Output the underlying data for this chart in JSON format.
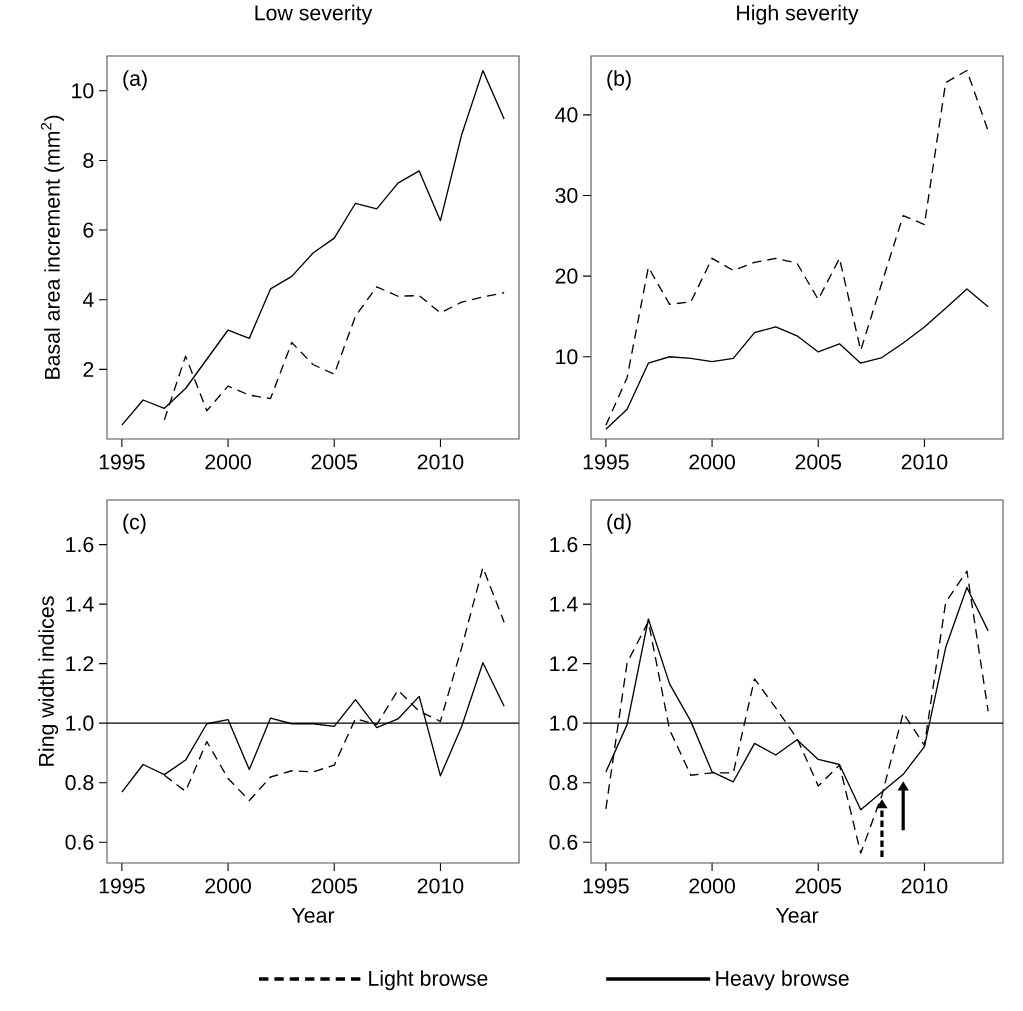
{
  "chart_data": [
    {
      "type": "line",
      "title": "Low severity",
      "ylabel": "Basal area increment (mm$^{2}$)",
      "annotations": [
        "(a)"
      ],
      "x": [
        1995,
        1996,
        1997,
        1998,
        1999,
        2000,
        2001,
        2002,
        2003,
        2004,
        2005,
        2006,
        2007,
        2008,
        2009,
        2010,
        2011,
        2012,
        2013
      ],
      "series": [
        {
          "color": "#000000",
          "line_style": "dashed",
          "values": [
            null,
            null,
            0.55,
            2.38,
            0.81,
            1.52,
            1.26,
            1.16,
            2.77,
            2.14,
            1.86,
            3.53,
            4.37,
            4.1,
            4.12,
            3.62,
            3.93,
            4.08,
            4.2
          ]
        },
        {
          "color": "#000000",
          "line_style": "solid",
          "values": [
            0.4,
            1.12,
            0.88,
            1.45,
            2.29,
            3.13,
            2.89,
            4.31,
            4.67,
            5.34,
            5.77,
            6.77,
            6.61,
            7.35,
            7.7,
            6.27,
            8.74,
            10.58,
            9.19
          ]
        }
      ],
      "xlim": [
        1994.3,
        2013.7
      ],
      "ylim": [
        0,
        11
      ],
      "xticks": [
        1995,
        2000,
        2005,
        2010
      ],
      "yticks": [
        2,
        4,
        6,
        8,
        10
      ],
      "grid": false,
      "legend": false
    },
    {
      "type": "line",
      "title": "High severity",
      "annotations": [
        "(b)"
      ],
      "x": [
        1995,
        1996,
        1997,
        1998,
        1999,
        2000,
        2001,
        2002,
        2003,
        2004,
        2005,
        2006,
        2007,
        2008,
        2009,
        2010,
        2011,
        2012,
        2013
      ],
      "series": [
        {
          "color": "#000000",
          "line_style": "dashed",
          "values": [
            1.5,
            7.4,
            21.1,
            16.5,
            16.8,
            22.2,
            20.7,
            21.7,
            22.2,
            21.6,
            17.1,
            22.2,
            10.8,
            19.2,
            27.5,
            26.4,
            44.0,
            45.5,
            38.0
          ]
        },
        {
          "color": "#000000",
          "line_style": "solid",
          "values": [
            1.0,
            3.5,
            9.2,
            10.0,
            9.8,
            9.4,
            9.8,
            13.0,
            13.7,
            12.6,
            10.6,
            11.6,
            9.2,
            9.9,
            11.7,
            13.7,
            16.0,
            18.4,
            16.2
          ]
        }
      ],
      "xlim": [
        1994.3,
        2013.7
      ],
      "ylim": [
        -0.2,
        47.3
      ],
      "xticks": [
        1995,
        2000,
        2005,
        2010
      ],
      "yticks": [
        10,
        20,
        30,
        40
      ],
      "grid": false,
      "legend": false
    },
    {
      "type": "line",
      "xlabel": "Year",
      "ylabel": "Ring width indices",
      "annotations": [
        "(c)"
      ],
      "x": [
        1995,
        1996,
        1997,
        1998,
        1999,
        2000,
        2001,
        2002,
        2003,
        2004,
        2005,
        2006,
        2007,
        2008,
        2009,
        2010,
        2011,
        2012,
        2013
      ],
      "series": [
        {
          "name": "Light browse",
          "color": "#000000",
          "line_style": "dashed",
          "values": [
            null,
            null,
            0.825,
            0.771,
            0.938,
            0.814,
            0.74,
            0.819,
            0.84,
            0.836,
            0.859,
            1.015,
            0.995,
            1.111,
            1.04,
            1.006,
            1.254,
            1.523,
            1.339
          ]
        },
        {
          "name": "Heavy browse",
          "color": "#000000",
          "line_style": "solid",
          "values": [
            0.768,
            0.861,
            0.827,
            0.876,
            0.998,
            1.012,
            0.844,
            1.017,
            0.998,
            0.998,
            0.989,
            1.079,
            0.985,
            1.014,
            1.09,
            0.823,
            0.989,
            1.203,
            1.057
          ]
        }
      ],
      "ref_lines": [
        {
          "axis": "y",
          "value": 1,
          "color": "#000000"
        }
      ],
      "xlim": [
        1994.3,
        2013.7
      ],
      "ylim": [
        0.53,
        1.75
      ],
      "xticks": [
        1995,
        2000,
        2005,
        2010
      ],
      "yticks": [
        0.6,
        0.8,
        {
          "value": 1,
          "label": "1.0"
        },
        1.2,
        1.4,
        1.6
      ],
      "grid": false,
      "legend": "bottom"
    },
    {
      "type": "line",
      "xlabel": "Year",
      "annotations": [
        "(d)"
      ],
      "x": [
        1995,
        1996,
        1997,
        1998,
        1999,
        2000,
        2001,
        2002,
        2003,
        2004,
        2005,
        2006,
        2007,
        2008,
        2009,
        2010,
        2011,
        2012,
        2013
      ],
      "series": [
        {
          "color": "#000000",
          "line_style": "dashed",
          "values": [
            0.712,
            1.203,
            1.341,
            0.978,
            0.825,
            0.833,
            0.833,
            1.149,
            1.051,
            0.949,
            0.789,
            0.859,
            0.563,
            0.758,
            1.034,
            0.925,
            1.406,
            1.511,
            1.04
          ]
        },
        {
          "color": "#000000",
          "line_style": "solid",
          "values": [
            0.836,
            0.995,
            1.35,
            1.132,
            1.006,
            0.836,
            0.803,
            0.932,
            0.893,
            0.944,
            0.878,
            0.861,
            0.709,
            0.769,
            0.828,
            0.921,
            1.254,
            1.456,
            1.31
          ]
        }
      ],
      "ref_lines": [
        {
          "axis": "y",
          "value": 1,
          "color": "#000000"
        }
      ],
      "xlim": [
        1994.3,
        2013.7
      ],
      "ylim": [
        0.53,
        1.75
      ],
      "xticks": [
        1995,
        2000,
        2005,
        2010
      ],
      "yticks": [
        0.6,
        0.8,
        {
          "value": 1,
          "label": "1.0"
        },
        1.2,
        1.4,
        1.6
      ],
      "grid": false,
      "legend": false
    }
  ]
}
